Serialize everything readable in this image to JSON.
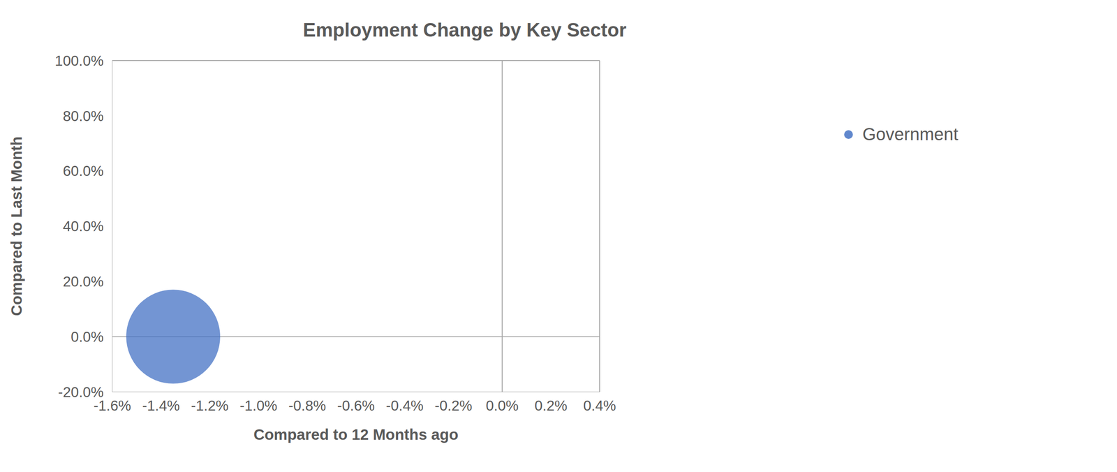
{
  "chart_data": {
    "type": "bubble",
    "title": "Employment Change by Key Sector",
    "x_label": "Compared to 12 Months ago",
    "y_label": "Compared to Last Month",
    "xlim": [
      -1.6,
      0.4
    ],
    "ylim": [
      -20,
      100
    ],
    "xticks": [
      {
        "value": -1.6,
        "label": "-1.6%"
      },
      {
        "value": -1.4,
        "label": "-1.4%"
      },
      {
        "value": -1.2,
        "label": "-1.2%"
      },
      {
        "value": -1.0,
        "label": "-1.0%"
      },
      {
        "value": -0.8,
        "label": "-0.8%"
      },
      {
        "value": -0.6,
        "label": "-0.6%"
      },
      {
        "value": -0.4,
        "label": "-0.4%"
      },
      {
        "value": -0.2,
        "label": "-0.2%"
      },
      {
        "value": 0,
        "label": "0.0%"
      },
      {
        "value": 0.2,
        "label": "0.2%"
      },
      {
        "value": 0.4,
        "label": "0.4%"
      }
    ],
    "yticks": [
      {
        "value": -20,
        "label": "-20.0%"
      },
      {
        "value": 0,
        "label": "0.0%"
      },
      {
        "value": 20,
        "label": "20.0%"
      },
      {
        "value": 40,
        "label": "40.0%"
      },
      {
        "value": 60,
        "label": "60.0%"
      },
      {
        "value": 80,
        "label": "80.0%"
      },
      {
        "value": 100,
        "label": "100.0%"
      }
    ],
    "grid": false,
    "legend": "right",
    "series": [
      {
        "name": "Government",
        "color": "#4472c4",
        "x": [
          -1.35
        ],
        "y": [
          0
        ],
        "sizes": [
          15000
        ]
      }
    ]
  }
}
